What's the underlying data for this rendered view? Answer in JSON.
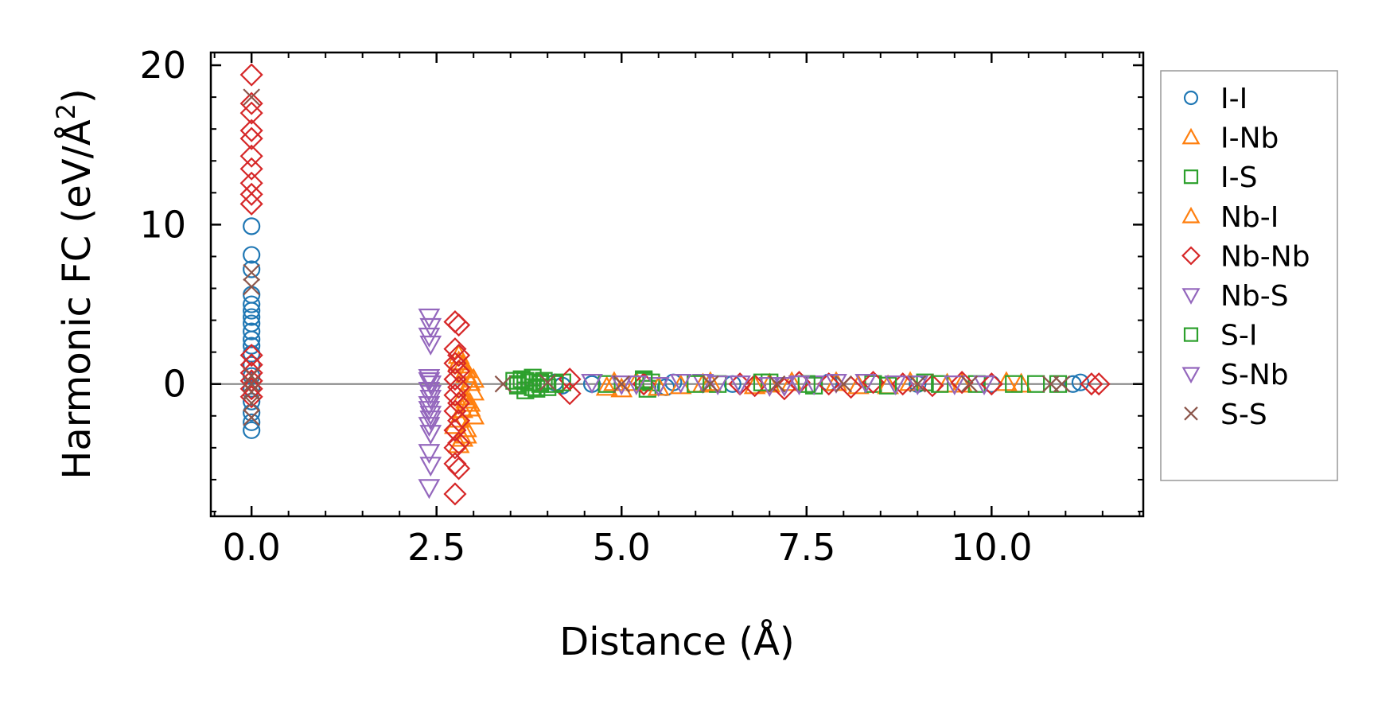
{
  "chart_data": {
    "type": "scatter",
    "title": "",
    "xlabel": "Distance (Å)",
    "ylabel": "Harmonic FC (eV/Å²)",
    "ylabel_parts": {
      "main": "Harmonic FC (eV/Å",
      "sup": "2",
      "close": ")"
    },
    "xlim": [
      -0.55,
      12.05
    ],
    "ylim": [
      -8.3,
      20.8
    ],
    "xticks": [
      0.0,
      2.5,
      5.0,
      7.5,
      10.0
    ],
    "xtick_labels": [
      "0.0",
      "2.5",
      "5.0",
      "7.5",
      "10.0"
    ],
    "yticks": [
      0,
      10,
      20
    ],
    "ytick_labels": [
      "0",
      "10",
      "20"
    ],
    "x_minor_step": 0.5,
    "y_minor_step": 2,
    "zero_line": true,
    "legend_position": "outside-right",
    "series": [
      {
        "name": "I-I",
        "marker": "circle",
        "color": "#1f77b4",
        "points": [
          [
            0,
            9.9
          ],
          [
            0,
            8.1
          ],
          [
            0,
            7.2
          ],
          [
            0,
            5.6
          ],
          [
            0,
            5.0
          ],
          [
            0,
            4.6
          ],
          [
            0,
            4.2
          ],
          [
            0,
            3.8
          ],
          [
            0,
            3.3
          ],
          [
            0,
            2.8
          ],
          [
            0,
            2.4
          ],
          [
            0,
            1.9
          ],
          [
            0,
            1.2
          ],
          [
            0,
            0.5
          ],
          [
            0,
            -0.3
          ],
          [
            0,
            -1.1
          ],
          [
            0,
            -1.8
          ],
          [
            0,
            -2.4
          ],
          [
            0,
            -2.9
          ],
          [
            4.1,
            0.1
          ],
          [
            4.2,
            -0.1
          ],
          [
            4.6,
            0.0
          ],
          [
            5.6,
            -0.2
          ],
          [
            5.7,
            0.1
          ],
          [
            6.5,
            0.0
          ],
          [
            7.8,
            0.1
          ],
          [
            9.0,
            0.0
          ],
          [
            10.0,
            0.0
          ],
          [
            11.1,
            0.0
          ],
          [
            11.2,
            0.1
          ]
        ]
      },
      {
        "name": "I-Nb",
        "marker": "triangle-up",
        "color": "#ff7f0e",
        "points": [
          [
            2.8,
            1.8
          ],
          [
            2.85,
            1.2
          ],
          [
            2.9,
            0.6
          ],
          [
            2.95,
            0.1
          ],
          [
            3.0,
            -0.5
          ],
          [
            2.9,
            -1.0
          ],
          [
            2.85,
            -1.6
          ],
          [
            2.8,
            -2.2
          ],
          [
            2.9,
            -2.8
          ],
          [
            2.85,
            -3.4
          ],
          [
            2.8,
            -3.8
          ],
          [
            3.0,
            -2.0
          ],
          [
            2.95,
            -1.2
          ],
          [
            4.8,
            -0.2
          ],
          [
            5.0,
            -0.3
          ],
          [
            5.2,
            0.1
          ],
          [
            5.8,
            -0.1
          ],
          [
            6.1,
            0.0
          ],
          [
            6.8,
            -0.1
          ],
          [
            7.3,
            0.1
          ],
          [
            8.2,
            -0.1
          ],
          [
            8.9,
            0.1
          ],
          [
            9.6,
            0.0
          ],
          [
            10.4,
            0.0
          ]
        ]
      },
      {
        "name": "I-S",
        "marker": "square",
        "color": "#2ca02c",
        "points": [
          [
            3.55,
            0.2
          ],
          [
            3.6,
            -0.1
          ],
          [
            3.65,
            0.3
          ],
          [
            3.7,
            -0.4
          ],
          [
            3.75,
            0.1
          ],
          [
            3.8,
            0.4
          ],
          [
            3.85,
            -0.3
          ],
          [
            3.9,
            0.0
          ],
          [
            3.95,
            0.2
          ],
          [
            4.0,
            -0.2
          ],
          [
            4.2,
            0.1
          ],
          [
            4.8,
            0.0
          ],
          [
            5.3,
            0.3
          ],
          [
            5.35,
            -0.3
          ],
          [
            5.4,
            0.1
          ],
          [
            6.3,
            0.0
          ],
          [
            7.0,
            0.1
          ],
          [
            7.6,
            -0.1
          ],
          [
            8.4,
            0.0
          ],
          [
            9.1,
            0.1
          ],
          [
            9.8,
            0.0
          ],
          [
            10.6,
            0.0
          ],
          [
            10.9,
            0.0
          ]
        ]
      },
      {
        "name": "Nb-I",
        "marker": "triangle-up",
        "color": "#ff7f0e",
        "points": [
          [
            2.8,
            1.4
          ],
          [
            2.9,
            0.9
          ],
          [
            2.85,
            -0.8
          ],
          [
            2.95,
            -1.5
          ],
          [
            2.75,
            -2.6
          ],
          [
            2.9,
            -3.2
          ],
          [
            3.0,
            0.3
          ],
          [
            4.9,
            0.1
          ],
          [
            5.5,
            -0.2
          ],
          [
            6.2,
            0.1
          ],
          [
            7.0,
            0.0
          ],
          [
            7.9,
            0.1
          ],
          [
            8.6,
            -0.1
          ],
          [
            9.4,
            0.0
          ],
          [
            10.2,
            0.1
          ]
        ]
      },
      {
        "name": "Nb-Nb",
        "marker": "diamond",
        "color": "#d62728",
        "points": [
          [
            0,
            19.4
          ],
          [
            0,
            17.6
          ],
          [
            0,
            17.0
          ],
          [
            0,
            15.9
          ],
          [
            0,
            15.4
          ],
          [
            0,
            14.3
          ],
          [
            0,
            13.5
          ],
          [
            0,
            12.6
          ],
          [
            0,
            11.9
          ],
          [
            0,
            11.3
          ],
          [
            0,
            1.8
          ],
          [
            0,
            1.2
          ],
          [
            0,
            0.7
          ],
          [
            0,
            0.2
          ],
          [
            0,
            -0.3
          ],
          [
            0,
            -0.8
          ],
          [
            2.75,
            3.9
          ],
          [
            2.8,
            3.7
          ],
          [
            2.75,
            2.2
          ],
          [
            2.8,
            1.8
          ],
          [
            2.75,
            1.3
          ],
          [
            2.8,
            0.8
          ],
          [
            2.75,
            0.3
          ],
          [
            2.8,
            -0.2
          ],
          [
            2.75,
            -0.7
          ],
          [
            2.8,
            -1.2
          ],
          [
            2.75,
            -1.7
          ],
          [
            2.8,
            -2.3
          ],
          [
            2.75,
            -2.9
          ],
          [
            2.8,
            -3.7
          ],
          [
            2.75,
            -4.0
          ],
          [
            2.75,
            -5.0
          ],
          [
            2.8,
            -5.3
          ],
          [
            2.75,
            -6.9
          ],
          [
            4.3,
            -0.6
          ],
          [
            4.3,
            0.3
          ],
          [
            5.3,
            0.0
          ],
          [
            6.6,
            0.0
          ],
          [
            6.8,
            -0.1
          ],
          [
            7.2,
            -0.3
          ],
          [
            7.4,
            0.1
          ],
          [
            7.8,
            0.0
          ],
          [
            8.1,
            -0.2
          ],
          [
            8.4,
            0.1
          ],
          [
            8.8,
            0.0
          ],
          [
            9.2,
            -0.1
          ],
          [
            9.6,
            0.1
          ],
          [
            10.0,
            0.0
          ],
          [
            11.35,
            0.0
          ],
          [
            11.45,
            0.0
          ]
        ]
      },
      {
        "name": "Nb-S",
        "marker": "triangle-down",
        "color": "#9467bd",
        "points": [
          [
            2.4,
            4.2
          ],
          [
            2.42,
            3.6
          ],
          [
            2.4,
            3.0
          ],
          [
            2.42,
            2.5
          ],
          [
            2.4,
            0.4
          ],
          [
            2.42,
            0.0
          ],
          [
            2.4,
            -0.4
          ],
          [
            2.42,
            -0.9
          ],
          [
            2.4,
            -1.3
          ],
          [
            2.42,
            -1.9
          ],
          [
            2.4,
            -2.6
          ],
          [
            2.42,
            -3.1
          ],
          [
            2.4,
            -4.3
          ],
          [
            2.42,
            -5.1
          ],
          [
            2.4,
            -6.5
          ],
          [
            4.6,
            0.1
          ],
          [
            5.0,
            0.0
          ],
          [
            5.5,
            -0.1
          ],
          [
            6.1,
            0.1
          ],
          [
            6.6,
            0.0
          ],
          [
            7.2,
            -0.1
          ],
          [
            7.6,
            0.0
          ],
          [
            8.3,
            0.1
          ],
          [
            9.0,
            0.0
          ],
          [
            9.9,
            0.0
          ]
        ]
      },
      {
        "name": "S-I",
        "marker": "square",
        "color": "#2ca02c",
        "points": [
          [
            3.6,
            0.0
          ],
          [
            3.7,
            0.2
          ],
          [
            3.8,
            -0.2
          ],
          [
            3.9,
            0.1
          ],
          [
            4.1,
            0.0
          ],
          [
            5.3,
            0.2
          ],
          [
            6.0,
            0.0
          ],
          [
            6.9,
            0.1
          ],
          [
            7.5,
            0.0
          ],
          [
            8.6,
            -0.1
          ],
          [
            9.3,
            0.0
          ],
          [
            10.3,
            0.0
          ]
        ]
      },
      {
        "name": "S-Nb",
        "marker": "triangle-down",
        "color": "#9467bd",
        "points": [
          [
            2.4,
            0.2
          ],
          [
            2.42,
            -0.6
          ],
          [
            2.4,
            -1.6
          ],
          [
            2.42,
            -2.2
          ],
          [
            5.2,
            0.0
          ],
          [
            5.8,
            0.1
          ],
          [
            6.3,
            0.0
          ],
          [
            7.0,
            -0.1
          ],
          [
            7.4,
            0.0
          ],
          [
            7.9,
            0.1
          ],
          [
            8.7,
            0.0
          ],
          [
            9.5,
            0.0
          ]
        ]
      },
      {
        "name": "S-S",
        "marker": "x",
        "color": "#8c564b",
        "points": [
          [
            0,
            18.0
          ],
          [
            0,
            7.0
          ],
          [
            0,
            6.1
          ],
          [
            0,
            0.5
          ],
          [
            0,
            0.0
          ],
          [
            0,
            -0.5
          ],
          [
            0,
            -1.2
          ],
          [
            0,
            -2.1
          ],
          [
            3.4,
            0.0
          ],
          [
            4.0,
            0.1
          ],
          [
            5.0,
            0.0
          ],
          [
            6.2,
            0.0
          ],
          [
            7.1,
            0.0
          ],
          [
            8.0,
            0.0
          ],
          [
            9.0,
            0.0
          ],
          [
            9.7,
            0.0
          ],
          [
            10.8,
            0.0
          ],
          [
            10.95,
            0.0
          ]
        ]
      }
    ]
  }
}
